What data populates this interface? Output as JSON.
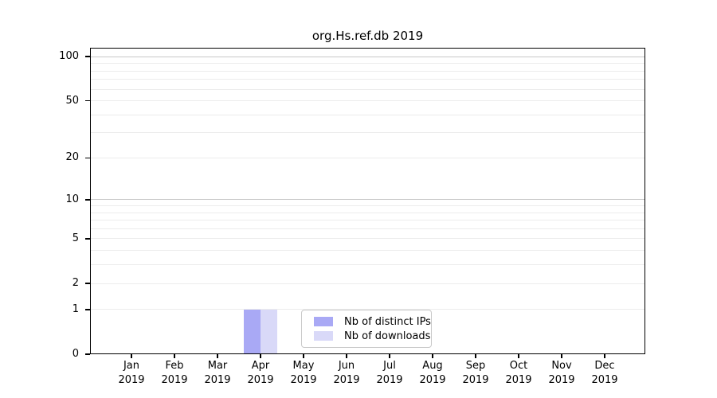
{
  "chart_data": {
    "type": "bar",
    "title": "org.Hs.ref.db 2019",
    "year": "2019",
    "months": [
      "Jan",
      "Feb",
      "Mar",
      "Apr",
      "May",
      "Jun",
      "Jul",
      "Aug",
      "Sep",
      "Oct",
      "Nov",
      "Dec"
    ],
    "series": [
      {
        "name": "Nb of distinct IPs",
        "color": "#a9a9f5",
        "values": [
          0,
          0,
          0,
          1,
          0,
          0,
          0,
          0,
          0,
          0,
          0,
          0
        ]
      },
      {
        "name": "Nb of downloads",
        "color": "#d9d9f8",
        "values": [
          0,
          0,
          0,
          1,
          0,
          0,
          0,
          0,
          0,
          0,
          0,
          0
        ]
      }
    ],
    "yticks": [
      0,
      1,
      2,
      5,
      10,
      20,
      50,
      100
    ],
    "yscale": "log1p",
    "ylim": [
      0,
      115
    ],
    "xlabel": "",
    "ylabel": "",
    "grid": {
      "orientation": "horizontal",
      "minor_color": "#ececec",
      "major_color": "#c8c8c8",
      "minor_values": [
        1,
        2,
        3,
        4,
        5,
        6,
        7,
        8,
        9,
        20,
        30,
        40,
        50,
        60,
        70,
        80,
        90
      ],
      "major_values": [
        10,
        100
      ]
    },
    "legend": {
      "position": "lower center"
    },
    "axis_color": "#000000"
  }
}
